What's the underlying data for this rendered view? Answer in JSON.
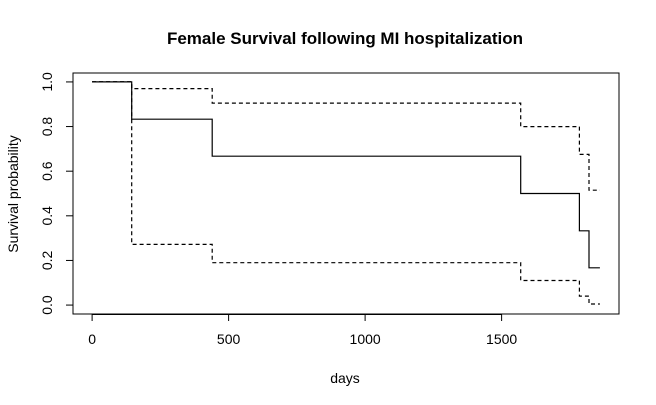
{
  "chart_data": {
    "type": "line",
    "title": "Female Survival following MI hospitalization",
    "xlabel": "days",
    "ylabel": "Survival probability",
    "xlim": [
      -70,
      1930
    ],
    "ylim": [
      -0.04,
      1.04
    ],
    "x_ticks": [
      0,
      500,
      1000,
      1500
    ],
    "y_ticks": [
      0.0,
      0.2,
      0.4,
      0.6,
      0.8,
      1.0
    ],
    "y_tick_labels": [
      "0.0",
      "0.2",
      "0.4",
      "0.6",
      "0.8",
      "1.0"
    ],
    "grid": false,
    "legend": "none",
    "series": [
      {
        "role": "estimate",
        "style": "solid",
        "x": [
          0,
          145,
          440,
          1570,
          1785,
          1820,
          1860
        ],
        "y": [
          1.0,
          0.833,
          0.667,
          0.5,
          0.333,
          0.167,
          0.167
        ]
      },
      {
        "role": "upper-ci",
        "style": "dashed",
        "x": [
          0,
          145,
          440,
          1570,
          1785,
          1820,
          1860
        ],
        "y": [
          1.0,
          0.97,
          0.905,
          0.8,
          0.675,
          0.515,
          0.515
        ]
      },
      {
        "role": "lower-ci",
        "style": "dashed",
        "x": [
          0,
          145,
          440,
          1570,
          1785,
          1820,
          1860
        ],
        "y": [
          1.0,
          0.272,
          0.19,
          0.11,
          0.04,
          0.005,
          0.005
        ]
      }
    ]
  }
}
